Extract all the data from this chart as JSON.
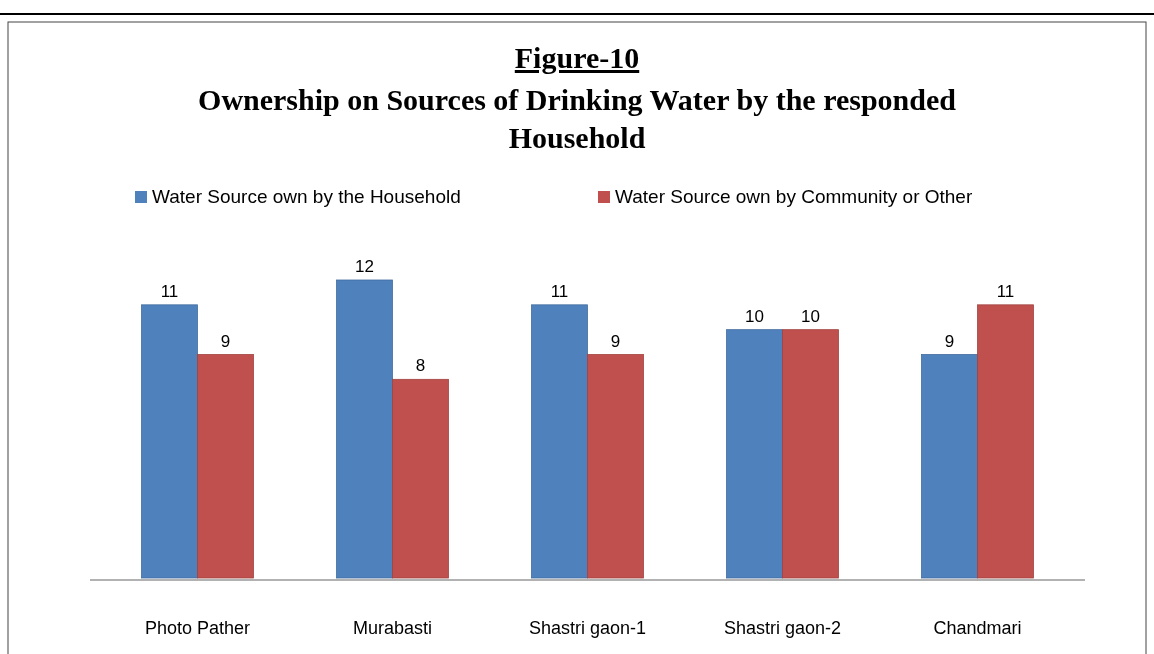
{
  "chart_data": {
    "type": "bar",
    "title": "Figure-10",
    "subtitle": "Ownership on Sources of Drinking Water by the responded Household",
    "categories": [
      "Photo Pather",
      "Murabasti",
      "Shastri gaon-1",
      "Shastri gaon-2",
      "Chandmari"
    ],
    "series": [
      {
        "name": "Water Source own by the Household",
        "color": "#4f81bd",
        "values": [
          11,
          12,
          11,
          10,
          9
        ]
      },
      {
        "name": "Water Source own by Community or Other",
        "color": "#c0504d",
        "values": [
          9,
          8,
          9,
          10,
          11
        ]
      }
    ],
    "data_labels": true,
    "legend": "top",
    "grid": false
  }
}
